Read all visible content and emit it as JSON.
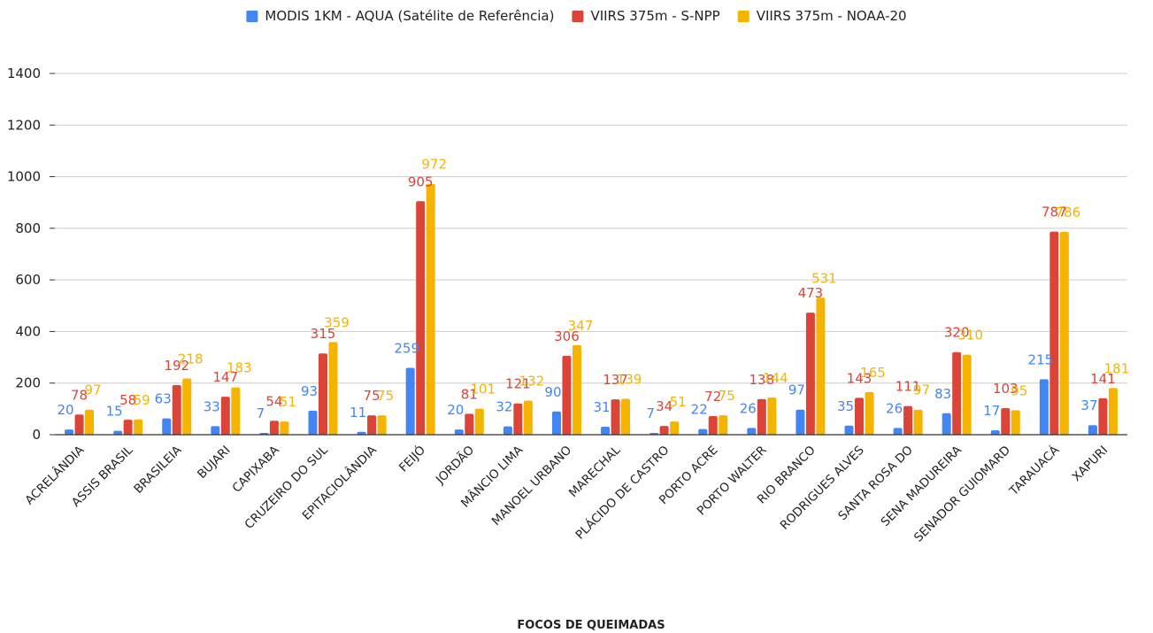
{
  "chart_data": {
    "type": "bar",
    "title": "",
    "xlabel": "FOCOS DE QUEIMADAS",
    "ylabel": "",
    "ylim": [
      0,
      1400
    ],
    "yticks": [
      0,
      200,
      400,
      600,
      800,
      1000,
      1200,
      1400
    ],
    "grid": true,
    "legend_position": "top",
    "categories": [
      "ACRELÂNDIA",
      "ASSIS BRASIL",
      "BRASILEIA",
      "BUJARI",
      "CAPIXABA",
      "CRUZEIRO DO SUL",
      "EPITACIOLÂNDIA",
      "FEIJÓ",
      "JORDÃO",
      "MÂNCIO LIMA",
      "MANOEL URBANO",
      "MARECHAL",
      "PLÁCIDO DE CASTRO",
      "PORTO ACRE",
      "PORTO WALTER",
      "RIO BRANCO",
      "RODRIGUES ALVES",
      "SANTA ROSA DO",
      "SENA MADUREIRA",
      "SENADOR GUIOMARD",
      "TARAUACÁ",
      "XAPURI"
    ],
    "series": [
      {
        "name": "MODIS 1KM - AQUA (Satélite de Referência)",
        "color": "#4285f4",
        "values": [
          20,
          15,
          63,
          33,
          7,
          93,
          11,
          259,
          20,
          32,
          90,
          31,
          7,
          22,
          26,
          97,
          35,
          26,
          83,
          17,
          215,
          37
        ]
      },
      {
        "name": "VIIRS 375m - S-NPP",
        "color": "#db4437",
        "values": [
          78,
          58,
          192,
          147,
          54,
          315,
          75,
          905,
          81,
          121,
          306,
          137,
          34,
          72,
          138,
          473,
          143,
          111,
          320,
          103,
          787,
          141
        ]
      },
      {
        "name": "VIIRS 375m - NOAA-20",
        "color": "#f4b400",
        "values": [
          97,
          59,
          218,
          183,
          51,
          359,
          75,
          972,
          101,
          132,
          347,
          139,
          51,
          75,
          144,
          531,
          165,
          97,
          310,
          95,
          786,
          181
        ]
      }
    ]
  }
}
